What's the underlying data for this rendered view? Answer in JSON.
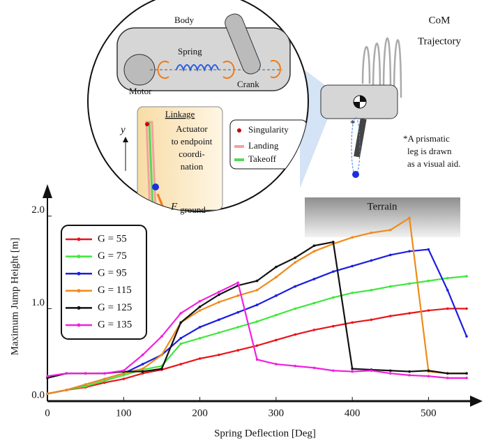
{
  "chart_data": {
    "type": "line",
    "x_label": "Spring Deflection [Deg]",
    "y_label": "Maximum Jump Height [m]",
    "x": [
      0,
      25,
      50,
      75,
      100,
      125,
      150,
      175,
      200,
      225,
      250,
      275,
      300,
      325,
      350,
      375,
      400,
      425,
      450,
      475,
      500,
      525,
      550
    ],
    "series": [
      {
        "name": "G = 55",
        "color": "#e8141b",
        "values": [
          0.08,
          0.12,
          0.15,
          0.2,
          0.24,
          0.3,
          0.34,
          0.4,
          0.46,
          0.5,
          0.55,
          0.6,
          0.66,
          0.72,
          0.77,
          0.81,
          0.85,
          0.88,
          0.92,
          0.95,
          0.98,
          1.0,
          1.0
        ]
      },
      {
        "name": "G = 75",
        "color": "#3ee83a",
        "values": [
          0.08,
          0.12,
          0.16,
          0.22,
          0.28,
          0.34,
          0.38,
          0.62,
          0.68,
          0.74,
          0.8,
          0.86,
          0.93,
          1.0,
          1.06,
          1.12,
          1.17,
          1.2,
          1.24,
          1.27,
          1.3,
          1.33,
          1.35
        ]
      },
      {
        "name": "G = 95",
        "color": "#1c1ee0",
        "values": [
          0.08,
          0.12,
          0.18,
          0.24,
          0.3,
          0.4,
          0.5,
          0.68,
          0.8,
          0.88,
          0.96,
          1.04,
          1.14,
          1.24,
          1.32,
          1.4,
          1.46,
          1.52,
          1.58,
          1.62,
          1.64,
          1.2,
          0.7
        ]
      },
      {
        "name": "G = 115",
        "color": "#f08a18",
        "values": [
          0.08,
          0.12,
          0.18,
          0.24,
          0.3,
          0.35,
          0.5,
          0.85,
          0.98,
          1.07,
          1.14,
          1.2,
          1.34,
          1.5,
          1.62,
          1.7,
          1.77,
          1.82,
          1.85,
          1.98,
          0.32,
          0.3,
          0.3
        ]
      },
      {
        "name": "G = 125",
        "color": "#111111",
        "values": [
          0.25,
          0.3,
          0.3,
          0.3,
          0.32,
          0.32,
          0.35,
          0.85,
          1.02,
          1.15,
          1.25,
          1.3,
          1.45,
          1.55,
          1.68,
          1.72,
          0.35,
          0.34,
          0.33,
          0.32,
          0.33,
          0.3,
          0.3
        ]
      },
      {
        "name": "G = 135",
        "color": "#f020e0",
        "values": [
          0.27,
          0.3,
          0.3,
          0.3,
          0.33,
          0.5,
          0.7,
          0.95,
          1.08,
          1.18,
          1.28,
          0.45,
          0.4,
          0.38,
          0.36,
          0.33,
          0.32,
          0.33,
          0.3,
          0.28,
          0.27,
          0.25,
          0.25
        ]
      }
    ],
    "xlim": [
      0,
      560
    ],
    "xticks": [
      0,
      100,
      200,
      300,
      400,
      500
    ],
    "ylim": [
      0,
      2.3
    ],
    "yticks": [
      {
        "value": 0,
        "label": "0.0"
      },
      {
        "value": 1,
        "label": "1.0"
      },
      {
        "value": 2,
        "label": "2.0"
      }
    ],
    "legend": "upper left"
  },
  "illustration": {
    "body": "Body",
    "spring": "Spring",
    "motor": "Motor",
    "crank": "Crank",
    "linkage": "Linkage",
    "linkage_note": [
      "Actuator",
      "to endpoint",
      "coordi-",
      "nation"
    ],
    "y_axis": "y",
    "force": "F",
    "force_sub": "ground",
    "key": [
      "Singularity",
      "Landing",
      "Takeoff"
    ],
    "com": [
      "CoM",
      "Trajectory"
    ],
    "star": "*",
    "aid_note": [
      "*A prismatic",
      "leg is drawn",
      "as a visual aid."
    ],
    "terrain": "Terrain"
  }
}
